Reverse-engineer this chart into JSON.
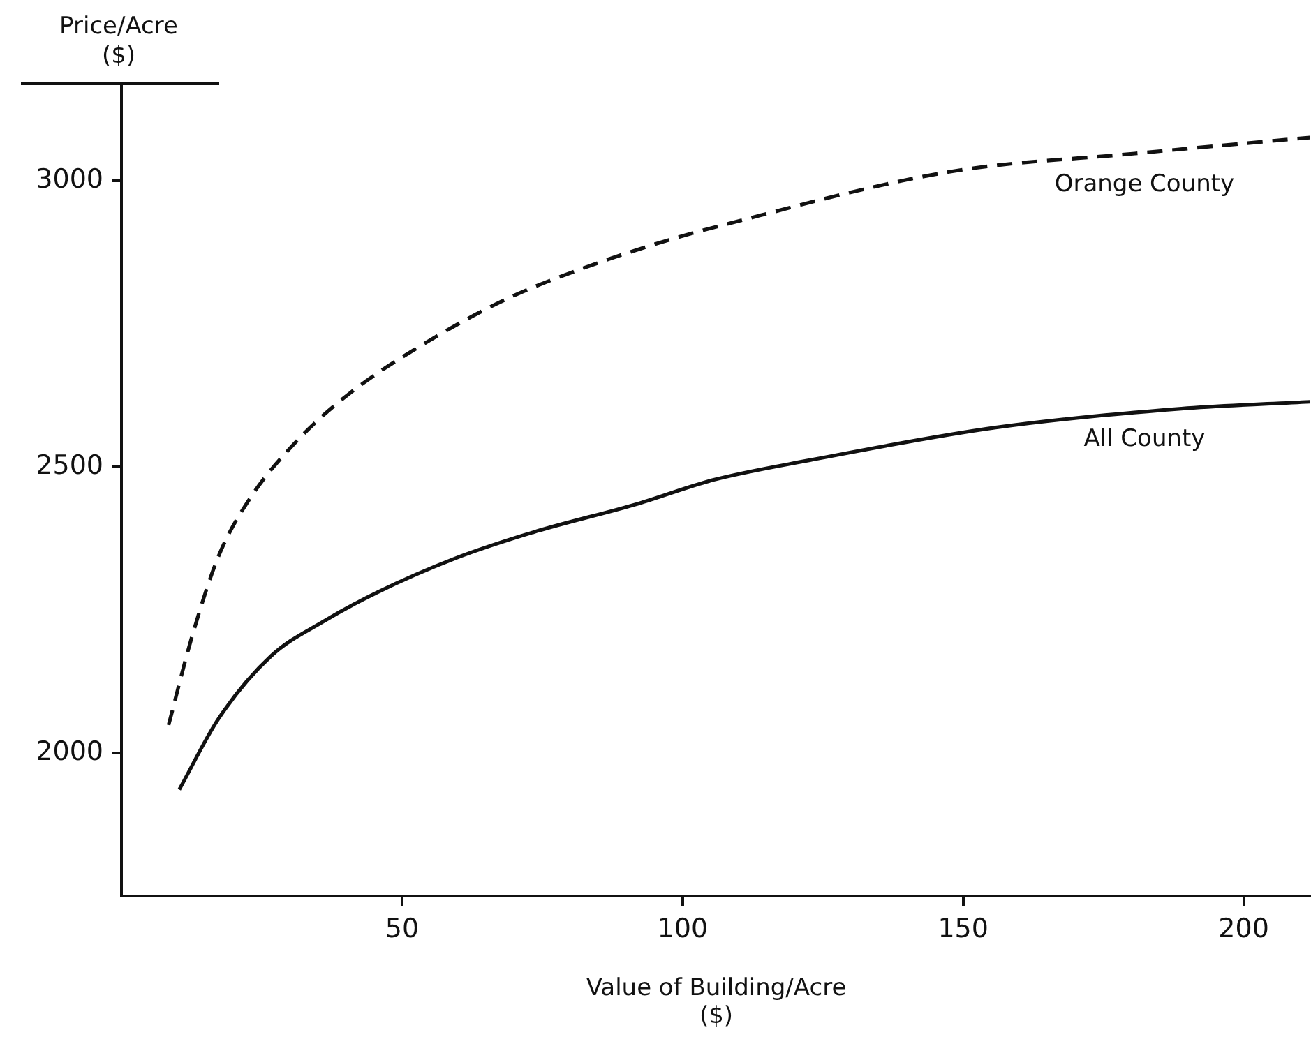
{
  "chart_data": {
    "type": "line",
    "xlabel": "Value of Building/Acre ($)",
    "ylabel": "Price/Acre ($)",
    "xlim": [
      0,
      212
    ],
    "xticks": [
      50,
      100,
      150,
      200
    ],
    "ylim": [
      1750,
      3170
    ],
    "yticks": [
      2000,
      2500,
      3000
    ],
    "grid": false,
    "legend": false,
    "marker": "none",
    "series": [
      {
        "name": "Orange County",
        "color": "#111111",
        "line_style": "dashed",
        "x": [
          8.4,
          12.7,
          17.3,
          22.9,
          31.3,
          40.7,
          54.7,
          68.7,
          82.7,
          97.9,
          105.3,
          147.5,
          180.6,
          211.8
        ],
        "values": [
          2049,
          2208,
          2344,
          2445,
          2546,
          2629,
          2720,
          2794,
          2849,
          2898,
          2918,
          3016,
          3048,
          3076
        ]
      },
      {
        "name": "All County",
        "color": "#111111",
        "line_style": "solid",
        "x": [
          10.3,
          17.3,
          26.7,
          36,
          45.4,
          59.4,
          73.4,
          92.1,
          105.3,
          122.7,
          155.8,
          188.9,
          211.8
        ],
        "values": [
          1936,
          2060,
          2170,
          2230,
          2280,
          2340,
          2386,
          2436,
          2477,
          2512,
          2569,
          2602,
          2614
        ]
      }
    ]
  }
}
